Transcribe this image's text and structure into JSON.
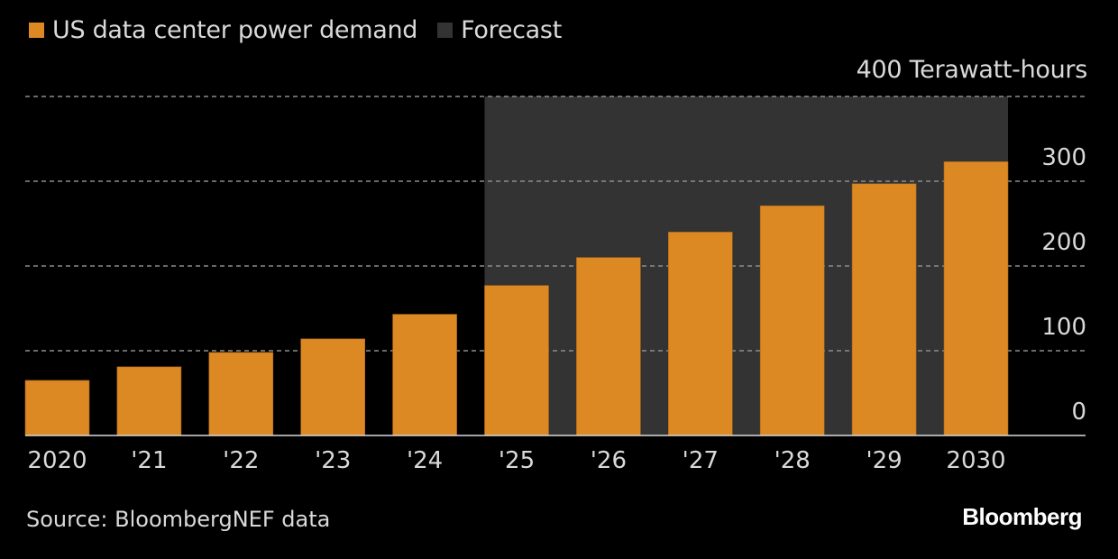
{
  "legend": [
    {
      "label": "US data center power demand",
      "color": "#dc8823"
    },
    {
      "label": "Forecast",
      "color": "#333333"
    }
  ],
  "unit_label": "400 Terawatt-hours",
  "source": "Source: BloombergNEF data",
  "brand": "Bloomberg",
  "colors": {
    "bar": "#dc8823",
    "forecast_band": "#333333",
    "grid": "#8c8c8c",
    "axis": "#d9d9d9",
    "background": "#000000"
  },
  "chart_data": {
    "type": "bar",
    "title": "",
    "xlabel": "",
    "ylabel": "Terawatt-hours",
    "categories": [
      "2020",
      "'21",
      "'22",
      "'23",
      "'24",
      "'25",
      "'26",
      "'27",
      "'28",
      "'29",
      "2030"
    ],
    "series": [
      {
        "name": "US data center power demand",
        "values": [
          65,
          81,
          98,
          114,
          143,
          177,
          210,
          240,
          271,
          297,
          323
        ]
      }
    ],
    "forecast_range": [
      "'25",
      "2030"
    ],
    "ylim": [
      0,
      400
    ],
    "yticks": [
      0,
      100,
      200,
      300,
      400
    ],
    "ytick_labels": [
      "0",
      "100",
      "200",
      "300",
      "400 Terawatt-hours"
    ],
    "y_axis_position": "right",
    "grid": true,
    "legend_position": "top-left"
  }
}
